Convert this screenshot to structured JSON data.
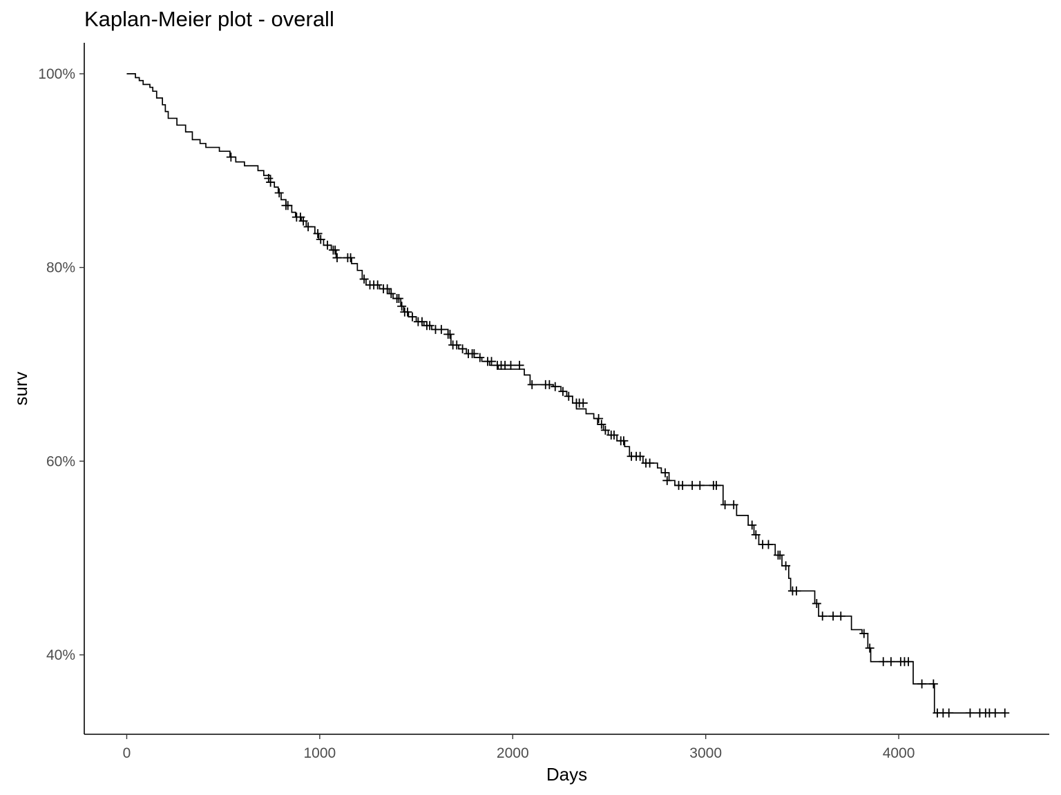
{
  "chart_data": {
    "type": "line",
    "title": "Kaplan-Meier plot - overall",
    "xlabel": "Days",
    "ylabel": "surv",
    "xlim": [
      -220,
      4780
    ],
    "ylim": [
      0.318,
      1.032
    ],
    "x_ticks": [
      0,
      1000,
      2000,
      3000,
      4000
    ],
    "x_tick_labels": [
      "0",
      "1000",
      "2000",
      "3000",
      "4000"
    ],
    "y_ticks": [
      0.4,
      0.6,
      0.8,
      1.0
    ],
    "y_tick_labels": [
      "40%",
      "60%",
      "80%",
      "100%"
    ],
    "grid": false,
    "legend": "none",
    "line_color": "#000000",
    "series": [
      {
        "step": [
          [
            0,
            1.0
          ],
          [
            40,
            1.0
          ],
          [
            45,
            0.996
          ],
          [
            65,
            0.993
          ],
          [
            85,
            0.989
          ],
          [
            120,
            0.986
          ],
          [
            135,
            0.982
          ],
          [
            155,
            0.975
          ],
          [
            185,
            0.968
          ],
          [
            200,
            0.961
          ],
          [
            215,
            0.954
          ],
          [
            260,
            0.947
          ],
          [
            305,
            0.94
          ],
          [
            340,
            0.932
          ],
          [
            380,
            0.928
          ],
          [
            410,
            0.924
          ],
          [
            480,
            0.92
          ],
          [
            535,
            0.914
          ],
          [
            565,
            0.909
          ],
          [
            610,
            0.905
          ],
          [
            680,
            0.9
          ],
          [
            710,
            0.895
          ],
          [
            745,
            0.888
          ],
          [
            765,
            0.883
          ],
          [
            785,
            0.877
          ],
          [
            800,
            0.87
          ],
          [
            825,
            0.864
          ],
          [
            855,
            0.857
          ],
          [
            875,
            0.852
          ],
          [
            905,
            0.848
          ],
          [
            930,
            0.842
          ],
          [
            975,
            0.835
          ],
          [
            995,
            0.829
          ],
          [
            1020,
            0.823
          ],
          [
            1060,
            0.818
          ],
          [
            1085,
            0.81
          ],
          [
            1165,
            0.804
          ],
          [
            1195,
            0.797
          ],
          [
            1220,
            0.788
          ],
          [
            1240,
            0.782
          ],
          [
            1310,
            0.778
          ],
          [
            1360,
            0.773
          ],
          [
            1380,
            0.768
          ],
          [
            1420,
            0.76
          ],
          [
            1435,
            0.754
          ],
          [
            1460,
            0.749
          ],
          [
            1500,
            0.744
          ],
          [
            1540,
            0.74
          ],
          [
            1580,
            0.736
          ],
          [
            1665,
            0.731
          ],
          [
            1680,
            0.72
          ],
          [
            1720,
            0.716
          ],
          [
            1760,
            0.711
          ],
          [
            1800,
            0.707
          ],
          [
            1840,
            0.703
          ],
          [
            1880,
            0.699
          ],
          [
            1925,
            0.695
          ],
          [
            2060,
            0.689
          ],
          [
            2090,
            0.679
          ],
          [
            2210,
            0.677
          ],
          [
            2250,
            0.672
          ],
          [
            2280,
            0.667
          ],
          [
            2310,
            0.66
          ],
          [
            2330,
            0.654
          ],
          [
            2380,
            0.649
          ],
          [
            2420,
            0.644
          ],
          [
            2440,
            0.638
          ],
          [
            2470,
            0.632
          ],
          [
            2495,
            0.627
          ],
          [
            2540,
            0.621
          ],
          [
            2580,
            0.615
          ],
          [
            2605,
            0.605
          ],
          [
            2675,
            0.598
          ],
          [
            2750,
            0.593
          ],
          [
            2770,
            0.588
          ],
          [
            2810,
            0.58
          ],
          [
            2840,
            0.575
          ],
          [
            3090,
            0.555
          ],
          [
            3160,
            0.544
          ],
          [
            3220,
            0.534
          ],
          [
            3250,
            0.524
          ],
          [
            3275,
            0.514
          ],
          [
            3360,
            0.503
          ],
          [
            3395,
            0.492
          ],
          [
            3430,
            0.479
          ],
          [
            3440,
            0.466
          ],
          [
            3565,
            0.453
          ],
          [
            3585,
            0.44
          ],
          [
            3755,
            0.426
          ],
          [
            3810,
            0.422
          ],
          [
            3840,
            0.407
          ],
          [
            3855,
            0.393
          ],
          [
            4075,
            0.37
          ],
          [
            4185,
            0.34
          ],
          [
            4550,
            0.34
          ]
        ],
        "censored": [
          [
            540,
            0.914
          ],
          [
            735,
            0.892
          ],
          [
            745,
            0.888
          ],
          [
            790,
            0.877
          ],
          [
            825,
            0.864
          ],
          [
            835,
            0.864
          ],
          [
            880,
            0.852
          ],
          [
            900,
            0.852
          ],
          [
            915,
            0.848
          ],
          [
            940,
            0.842
          ],
          [
            990,
            0.835
          ],
          [
            1005,
            0.829
          ],
          [
            1040,
            0.823
          ],
          [
            1070,
            0.818
          ],
          [
            1080,
            0.818
          ],
          [
            1090,
            0.81
          ],
          [
            1145,
            0.81
          ],
          [
            1160,
            0.81
          ],
          [
            1230,
            0.788
          ],
          [
            1260,
            0.782
          ],
          [
            1280,
            0.782
          ],
          [
            1300,
            0.782
          ],
          [
            1330,
            0.778
          ],
          [
            1350,
            0.778
          ],
          [
            1370,
            0.773
          ],
          [
            1400,
            0.768
          ],
          [
            1410,
            0.768
          ],
          [
            1425,
            0.76
          ],
          [
            1440,
            0.754
          ],
          [
            1455,
            0.754
          ],
          [
            1480,
            0.749
          ],
          [
            1510,
            0.744
          ],
          [
            1530,
            0.744
          ],
          [
            1555,
            0.74
          ],
          [
            1570,
            0.74
          ],
          [
            1600,
            0.736
          ],
          [
            1630,
            0.736
          ],
          [
            1665,
            0.731
          ],
          [
            1675,
            0.731
          ],
          [
            1690,
            0.72
          ],
          [
            1710,
            0.72
          ],
          [
            1740,
            0.716
          ],
          [
            1770,
            0.711
          ],
          [
            1790,
            0.711
          ],
          [
            1800,
            0.711
          ],
          [
            1830,
            0.707
          ],
          [
            1870,
            0.703
          ],
          [
            1890,
            0.703
          ],
          [
            1920,
            0.699
          ],
          [
            1940,
            0.699
          ],
          [
            1960,
            0.699
          ],
          [
            1990,
            0.699
          ],
          [
            2035,
            0.699
          ],
          [
            2100,
            0.679
          ],
          [
            2170,
            0.679
          ],
          [
            2190,
            0.679
          ],
          [
            2220,
            0.677
          ],
          [
            2260,
            0.672
          ],
          [
            2290,
            0.667
          ],
          [
            2330,
            0.66
          ],
          [
            2345,
            0.66
          ],
          [
            2365,
            0.66
          ],
          [
            2445,
            0.644
          ],
          [
            2460,
            0.638
          ],
          [
            2480,
            0.632
          ],
          [
            2510,
            0.627
          ],
          [
            2525,
            0.627
          ],
          [
            2560,
            0.621
          ],
          [
            2575,
            0.621
          ],
          [
            2615,
            0.605
          ],
          [
            2640,
            0.605
          ],
          [
            2660,
            0.605
          ],
          [
            2690,
            0.598
          ],
          [
            2710,
            0.598
          ],
          [
            2790,
            0.588
          ],
          [
            2800,
            0.58
          ],
          [
            2860,
            0.575
          ],
          [
            2880,
            0.575
          ],
          [
            2930,
            0.575
          ],
          [
            2970,
            0.575
          ],
          [
            3040,
            0.575
          ],
          [
            3055,
            0.575
          ],
          [
            3100,
            0.555
          ],
          [
            3145,
            0.555
          ],
          [
            3240,
            0.534
          ],
          [
            3260,
            0.524
          ],
          [
            3295,
            0.514
          ],
          [
            3325,
            0.514
          ],
          [
            3375,
            0.503
          ],
          [
            3385,
            0.503
          ],
          [
            3415,
            0.492
          ],
          [
            3450,
            0.466
          ],
          [
            3470,
            0.466
          ],
          [
            3575,
            0.453
          ],
          [
            3605,
            0.44
          ],
          [
            3660,
            0.44
          ],
          [
            3700,
            0.44
          ],
          [
            3820,
            0.422
          ],
          [
            3850,
            0.407
          ],
          [
            3920,
            0.393
          ],
          [
            3960,
            0.393
          ],
          [
            4010,
            0.393
          ],
          [
            4030,
            0.393
          ],
          [
            4050,
            0.393
          ],
          [
            4120,
            0.37
          ],
          [
            4180,
            0.37
          ],
          [
            4200,
            0.34
          ],
          [
            4230,
            0.34
          ],
          [
            4260,
            0.34
          ],
          [
            4370,
            0.34
          ],
          [
            4420,
            0.34
          ],
          [
            4450,
            0.34
          ],
          [
            4470,
            0.34
          ],
          [
            4500,
            0.34
          ],
          [
            4550,
            0.34
          ]
        ]
      }
    ]
  }
}
